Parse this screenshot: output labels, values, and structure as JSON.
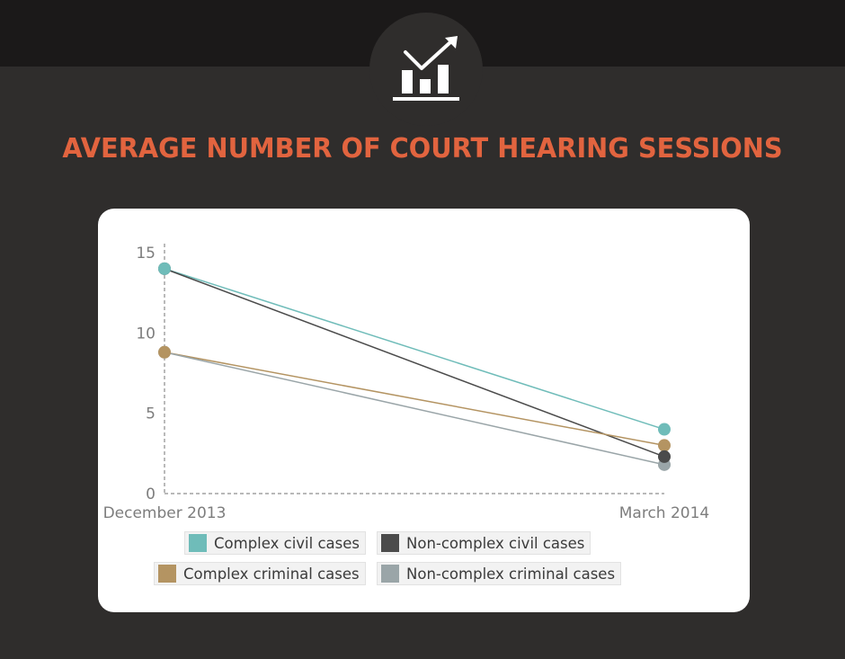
{
  "header": {
    "title": "AVERAGE NUMBER OF COURT HEARING SESSIONS",
    "icon": "bar-chart-growth-icon"
  },
  "colors": {
    "background": "#2f2d2c",
    "topbar": "#1b1919",
    "title": "#e2643f",
    "card": "#ffffff"
  },
  "chart_data": {
    "type": "line",
    "x": [
      "December 2013",
      "March 2014"
    ],
    "ylim": [
      0,
      15
    ],
    "yticks": [
      "0",
      "5",
      "10",
      "15"
    ],
    "grid": false,
    "legend_position": "bottom",
    "series": [
      {
        "name": "Complex civil cases",
        "values": [
          14,
          4
        ],
        "color": "#6fbcb9"
      },
      {
        "name": "Non-complex civil cases",
        "values": [
          14,
          2.3
        ],
        "color": "#4b4b4b"
      },
      {
        "name": "Complex criminal cases",
        "values": [
          8.8,
          3
        ],
        "color": "#b49462"
      },
      {
        "name": "Non-complex criminal cases",
        "values": [
          8.8,
          1.8
        ],
        "color": "#9aa5a8"
      }
    ]
  }
}
